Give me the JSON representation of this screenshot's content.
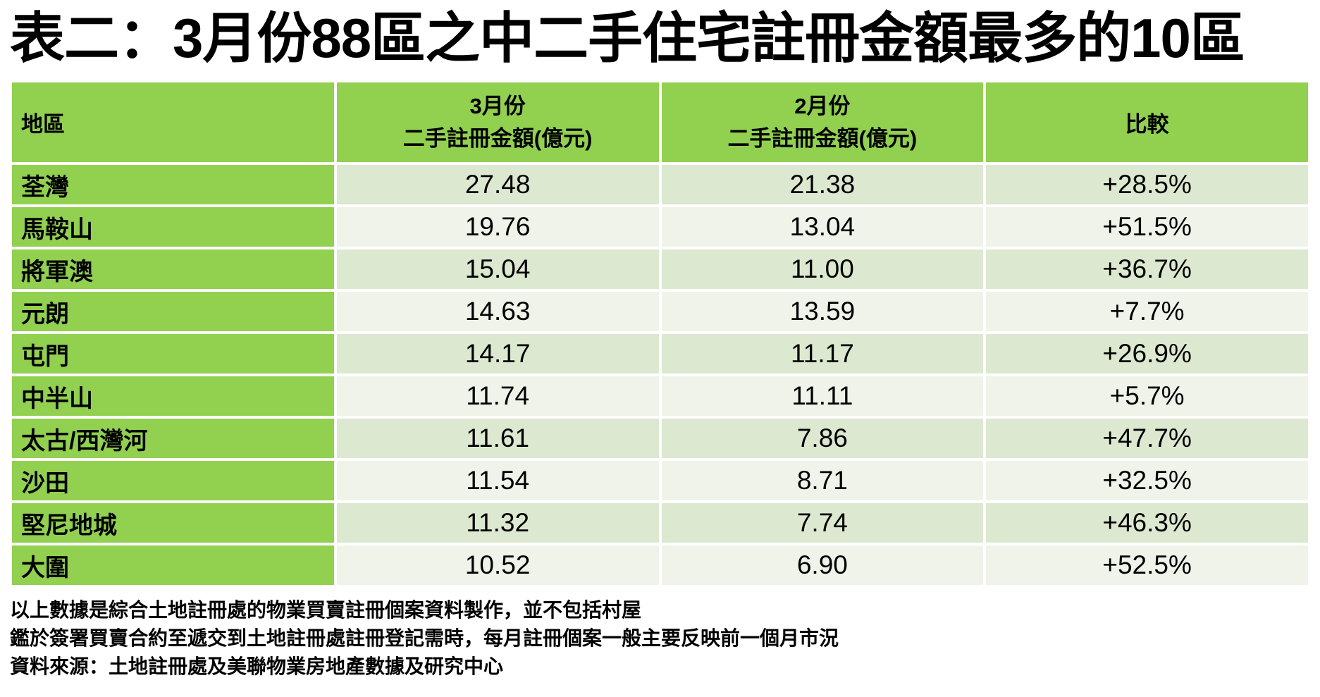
{
  "title": "表二：3月份88區之中二手住宅註冊金額最多的10區",
  "colors": {
    "header_green": "#92d050",
    "row_band_dark": "#dde8d0",
    "row_band_light": "#f0f3ea",
    "text": "#000000",
    "background": "#ffffff"
  },
  "table": {
    "header": {
      "district": "地區",
      "march_month": "3月份",
      "march_metric": "二手註冊金額(億元)",
      "feb_month": "2月份",
      "feb_metric": "二手註冊金額(億元)",
      "compare": "比較"
    },
    "rows": [
      {
        "district": "荃灣",
        "march": "27.48",
        "feb": "21.38",
        "change": "+28.5%"
      },
      {
        "district": "馬鞍山",
        "march": "19.76",
        "feb": "13.04",
        "change": "+51.5%"
      },
      {
        "district": "將軍澳",
        "march": "15.04",
        "feb": "11.00",
        "change": "+36.7%"
      },
      {
        "district": "元朗",
        "march": "14.63",
        "feb": "13.59",
        "change": "+7.7%"
      },
      {
        "district": "屯門",
        "march": "14.17",
        "feb": "11.17",
        "change": "+26.9%"
      },
      {
        "district": "中半山",
        "march": "11.74",
        "feb": "11.11",
        "change": "+5.7%"
      },
      {
        "district": "太古/西灣河",
        "march": "11.61",
        "feb": "7.86",
        "change": "+47.7%"
      },
      {
        "district": "沙田",
        "march": "11.54",
        "feb": "8.71",
        "change": "+32.5%"
      },
      {
        "district": "堅尼地城",
        "march": "11.32",
        "feb": "7.74",
        "change": "+46.3%"
      },
      {
        "district": "大圍",
        "march": "10.52",
        "feb": "6.90",
        "change": "+52.5%"
      }
    ]
  },
  "notes": [
    "以上數據是綜合土地註冊處的物業買賣註冊個案資料製作，並不包括村屋",
    "鑑於簽署買賣合約至遞交到土地註冊處註冊登記需時，每月註冊個案一般主要反映前一個月市況",
    "資料來源：土地註冊處及美聯物業房地產數據及研究中心"
  ],
  "chart_data": {
    "type": "table",
    "title": "表二：3月份88區之中二手住宅註冊金額最多的10區",
    "columns": [
      "地區",
      "3月份 二手註冊金額(億元)",
      "2月份 二手註冊金額(億元)",
      "比較"
    ],
    "rows": [
      [
        "荃灣",
        27.48,
        21.38,
        "+28.5%"
      ],
      [
        "馬鞍山",
        19.76,
        13.04,
        "+51.5%"
      ],
      [
        "將軍澳",
        15.04,
        11.0,
        "+36.7%"
      ],
      [
        "元朗",
        14.63,
        13.59,
        "+7.7%"
      ],
      [
        "屯門",
        14.17,
        11.17,
        "+26.9%"
      ],
      [
        "中半山",
        11.74,
        11.11,
        "+5.7%"
      ],
      [
        "太古/西灣河",
        11.61,
        7.86,
        "+47.7%"
      ],
      [
        "沙田",
        11.54,
        8.71,
        "+32.5%"
      ],
      [
        "堅尼地城",
        11.32,
        7.74,
        "+46.3%"
      ],
      [
        "大圍",
        10.52,
        6.9,
        "+52.5%"
      ]
    ]
  }
}
